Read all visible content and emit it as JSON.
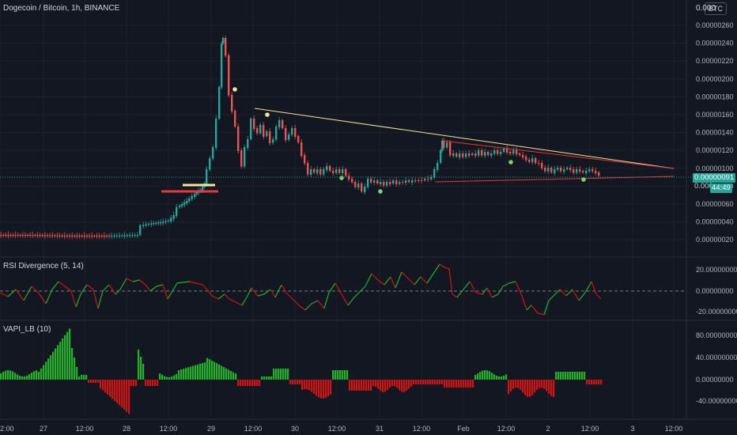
{
  "header": {
    "title": "Dogecoin / Bitcoin, 1h, BINANCE",
    "currency_badge": "BTC"
  },
  "price_axis": {
    "ticks": [
      "0.00000260",
      "0.00000240",
      "0.00000220",
      "0.00000200",
      "0.00000180",
      "0.00000160",
      "0.00000140",
      "0.00000120",
      "0.00000100",
      "0.00000080",
      "0.00000060",
      "0.00000040",
      "0.00000020"
    ],
    "top_partial_label": "0.000",
    "current_price": "0.00000091",
    "partial_label": "0.000",
    "countdown": "44:49"
  },
  "time_axis": {
    "ticks": [
      "2:00",
      "27",
      "12:00",
      "28",
      "12:00",
      "29",
      "12:00",
      "30",
      "12:00",
      "31",
      "12:00",
      "Feb",
      "12:00",
      "2",
      "12:00",
      "3",
      "12:00"
    ]
  },
  "panels": {
    "rsi": {
      "label": "RSI Divergence (5, 14)",
      "ticks": [
        "20.00000000",
        "0.00000000",
        "-20.00000000"
      ]
    },
    "vapi": {
      "label": "VAPI_LB (10)",
      "ticks": [
        "80.00000000",
        "40.00000000",
        "0.00000000",
        "-40.00000000"
      ]
    }
  },
  "colors": {
    "background": "#131722",
    "up": "#26a69a",
    "down": "#ef5350",
    "grid": "#1e222d",
    "resistance_line": "#f4e3a0",
    "support_line": "#e53935",
    "osc_up": "#1fb426",
    "osc_down": "#d01414"
  }
}
